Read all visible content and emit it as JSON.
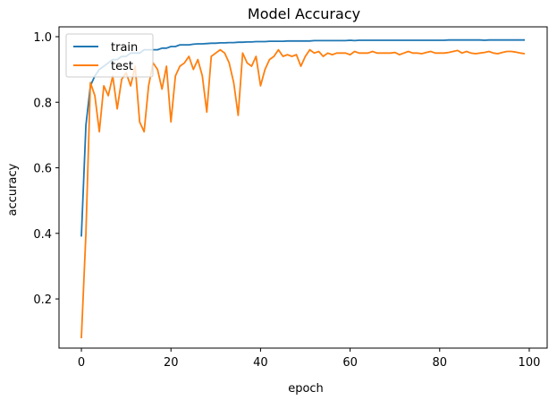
{
  "chart_data": {
    "type": "line",
    "title": "Model Accuracy",
    "xlabel": "epoch",
    "ylabel": "accuracy",
    "xlim": [
      -5,
      104
    ],
    "ylim": [
      0.05,
      1.03
    ],
    "xticks": [
      0,
      20,
      40,
      60,
      80,
      100
    ],
    "yticks": [
      0.2,
      0.4,
      0.6,
      0.8,
      1.0
    ],
    "ytick_labels": [
      "0.2",
      "0.4",
      "0.6",
      "0.8",
      "1.0"
    ],
    "legend_position": "upper left",
    "grid": false,
    "series": [
      {
        "name": "train",
        "color": "#1f77b4",
        "x": [
          0,
          1,
          2,
          3,
          4,
          5,
          6,
          7,
          8,
          9,
          10,
          11,
          12,
          13,
          14,
          15,
          16,
          17,
          18,
          19,
          20,
          21,
          22,
          23,
          24,
          25,
          26,
          27,
          28,
          29,
          30,
          31,
          32,
          33,
          34,
          35,
          36,
          37,
          38,
          39,
          40,
          41,
          42,
          43,
          44,
          45,
          46,
          47,
          48,
          49,
          50,
          51,
          52,
          53,
          54,
          55,
          56,
          57,
          58,
          59,
          60,
          61,
          62,
          63,
          64,
          65,
          66,
          67,
          68,
          69,
          70,
          71,
          72,
          73,
          74,
          75,
          76,
          77,
          78,
          79,
          80,
          81,
          82,
          83,
          84,
          85,
          86,
          87,
          88,
          89,
          90,
          91,
          92,
          93,
          94,
          95,
          96,
          97,
          98,
          99
        ],
        "y": [
          0.39,
          0.73,
          0.85,
          0.88,
          0.9,
          0.91,
          0.92,
          0.93,
          0.93,
          0.94,
          0.94,
          0.95,
          0.95,
          0.95,
          0.96,
          0.96,
          0.96,
          0.96,
          0.965,
          0.965,
          0.97,
          0.97,
          0.975,
          0.975,
          0.975,
          0.977,
          0.978,
          0.978,
          0.979,
          0.98,
          0.98,
          0.981,
          0.981,
          0.982,
          0.982,
          0.983,
          0.983,
          0.984,
          0.984,
          0.985,
          0.985,
          0.985,
          0.986,
          0.986,
          0.986,
          0.986,
          0.987,
          0.987,
          0.987,
          0.987,
          0.987,
          0.987,
          0.988,
          0.988,
          0.988,
          0.988,
          0.988,
          0.988,
          0.988,
          0.988,
          0.989,
          0.988,
          0.989,
          0.989,
          0.989,
          0.989,
          0.989,
          0.989,
          0.989,
          0.989,
          0.989,
          0.989,
          0.989,
          0.989,
          0.989,
          0.989,
          0.989,
          0.989,
          0.989,
          0.989,
          0.989,
          0.989,
          0.99,
          0.99,
          0.99,
          0.99,
          0.99,
          0.99,
          0.99,
          0.99,
          0.989,
          0.99,
          0.99,
          0.99,
          0.99,
          0.99,
          0.99,
          0.99,
          0.99,
          0.99
        ]
      },
      {
        "name": "test",
        "color": "#ff7f0e",
        "x": [
          0,
          1,
          2,
          3,
          4,
          5,
          6,
          7,
          8,
          9,
          10,
          11,
          12,
          13,
          14,
          15,
          16,
          17,
          18,
          19,
          20,
          21,
          22,
          23,
          24,
          25,
          26,
          27,
          28,
          29,
          30,
          31,
          32,
          33,
          34,
          35,
          36,
          37,
          38,
          39,
          40,
          41,
          42,
          43,
          44,
          45,
          46,
          47,
          48,
          49,
          50,
          51,
          52,
          53,
          54,
          55,
          56,
          57,
          58,
          59,
          60,
          61,
          62,
          63,
          64,
          65,
          66,
          67,
          68,
          69,
          70,
          71,
          72,
          73,
          74,
          75,
          76,
          77,
          78,
          79,
          80,
          81,
          82,
          83,
          84,
          85,
          86,
          87,
          88,
          89,
          90,
          91,
          92,
          93,
          94,
          95,
          96,
          97,
          98,
          99
        ],
        "y": [
          0.08,
          0.4,
          0.86,
          0.82,
          0.71,
          0.85,
          0.82,
          0.88,
          0.78,
          0.87,
          0.89,
          0.85,
          0.91,
          0.74,
          0.71,
          0.85,
          0.92,
          0.9,
          0.84,
          0.91,
          0.74,
          0.88,
          0.91,
          0.92,
          0.94,
          0.9,
          0.93,
          0.88,
          0.77,
          0.94,
          0.95,
          0.96,
          0.95,
          0.92,
          0.86,
          0.76,
          0.95,
          0.92,
          0.91,
          0.94,
          0.85,
          0.9,
          0.93,
          0.94,
          0.96,
          0.94,
          0.945,
          0.94,
          0.945,
          0.91,
          0.94,
          0.96,
          0.95,
          0.955,
          0.94,
          0.95,
          0.945,
          0.95,
          0.95,
          0.95,
          0.945,
          0.955,
          0.95,
          0.95,
          0.95,
          0.955,
          0.95,
          0.95,
          0.95,
          0.95,
          0.952,
          0.945,
          0.95,
          0.955,
          0.95,
          0.95,
          0.948,
          0.952,
          0.955,
          0.95,
          0.95,
          0.95,
          0.952,
          0.955,
          0.958,
          0.95,
          0.955,
          0.95,
          0.948,
          0.95,
          0.952,
          0.955,
          0.95,
          0.948,
          0.952,
          0.955,
          0.955,
          0.953,
          0.95,
          0.948
        ]
      }
    ]
  }
}
